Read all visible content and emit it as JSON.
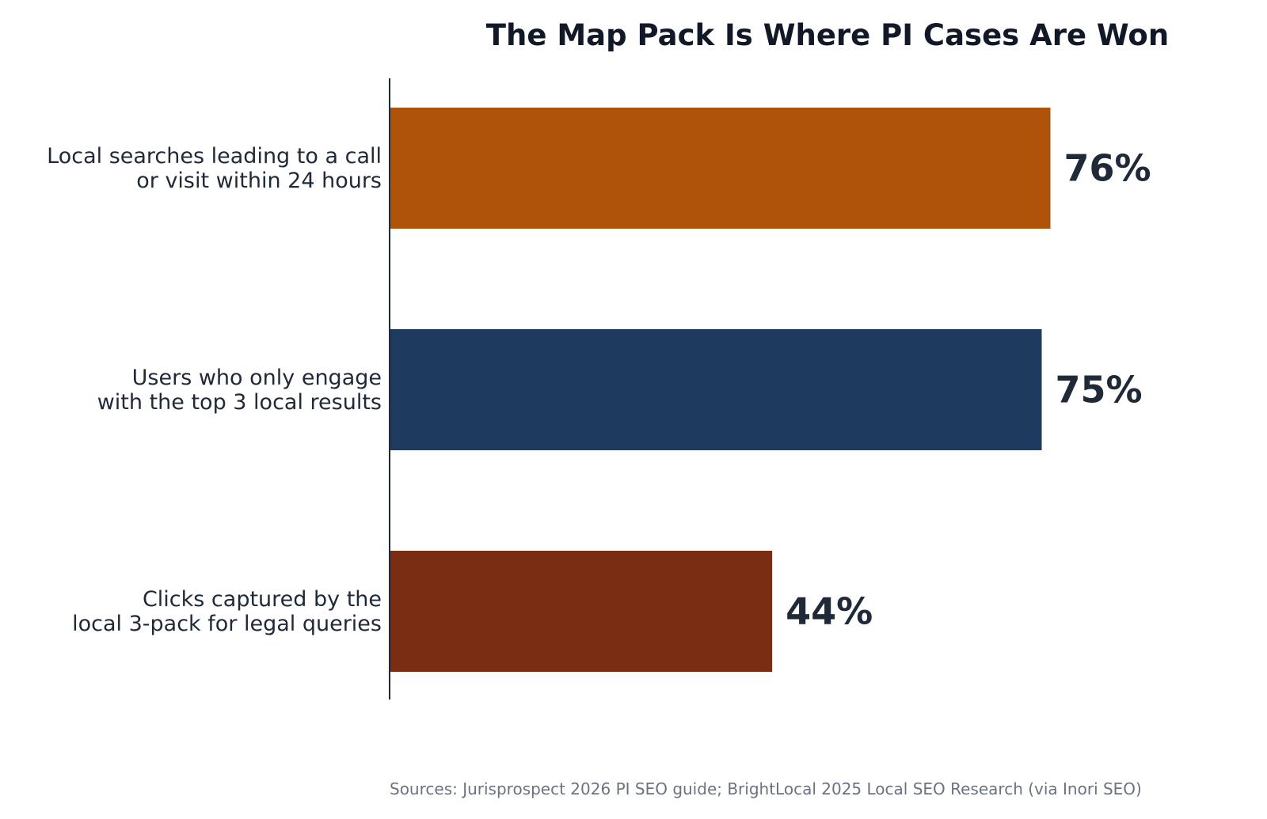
{
  "chart_data": {
    "type": "bar",
    "orientation": "horizontal",
    "title": "The Map Pack Is Where PI Cases Are Won",
    "xlabel": "",
    "ylabel": "",
    "categories": [
      [
        "Local searches leading to a call",
        "or visit within 24 hours"
      ],
      [
        "Users who only engage",
        "with the top 3 local results"
      ],
      [
        "Clicks captured by the",
        "local 3-pack for legal queries"
      ]
    ],
    "values": [
      76,
      75,
      44
    ],
    "value_labels": [
      "76%",
      "75%",
      "44%"
    ],
    "colors": [
      "#b0530a",
      "#1f3a5f",
      "#7a2d12"
    ],
    "xlim": [
      0,
      100
    ],
    "grid": false,
    "legend": "none",
    "source": "Sources: Jurisprospect 2026 PI SEO guide; BrightLocal 2025 Local SEO Research (via Inori SEO)"
  }
}
